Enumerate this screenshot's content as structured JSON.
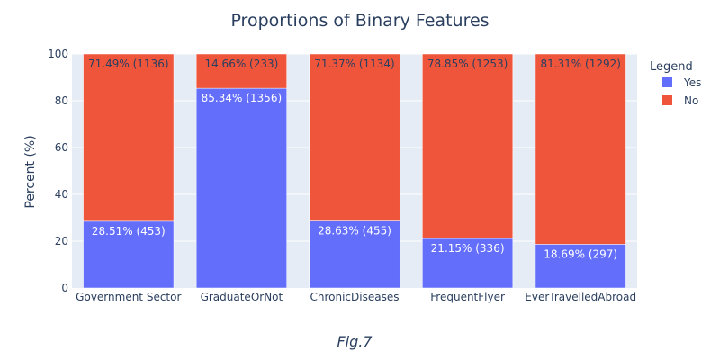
{
  "chart_data": {
    "type": "bar",
    "stacked": true,
    "title": "Proportions of Binary Features",
    "xlabel": "",
    "ylabel": "Percent (%)",
    "ylim": [
      0,
      100
    ],
    "yticks": [
      0,
      20,
      40,
      60,
      80,
      100
    ],
    "grid": true,
    "categories": [
      "Government Sector",
      "GraduateOrNot",
      "ChronicDiseases",
      "FrequentFlyer",
      "EverTravelledAbroad"
    ],
    "series": [
      {
        "name": "Yes",
        "color": "#636efa",
        "values": [
          28.51,
          85.34,
          28.63,
          21.15,
          18.69
        ],
        "labels": [
          "28.51% (453)",
          "85.34% (1356)",
          "28.63% (455)",
          "21.15% (336)",
          "18.69% (297)"
        ]
      },
      {
        "name": "No",
        "color": "#ef553b",
        "values": [
          71.49,
          14.66,
          71.37,
          78.85,
          81.31
        ],
        "labels": [
          "71.49% (1136)",
          "14.66% (233)",
          "71.37% (1134)",
          "78.85% (1253)",
          "81.31% (1292)"
        ]
      }
    ],
    "legend_title": "Legend",
    "legend_position": "top-right",
    "plot_background": "#e5ecf6"
  },
  "caption": "Fig.7"
}
